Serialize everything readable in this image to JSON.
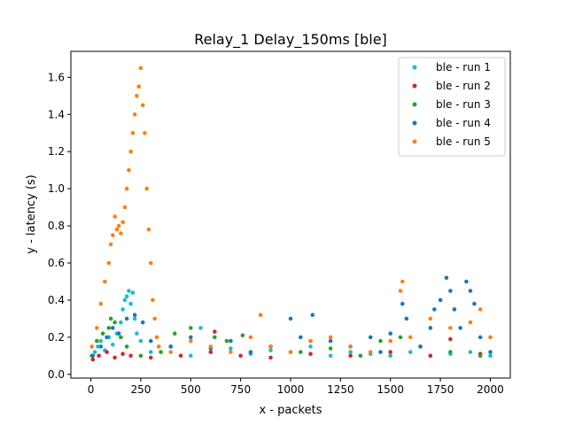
{
  "chart_data": {
    "type": "scatter",
    "title": "Relay_1 Delay_150ms [ble]",
    "xlabel": "x - packets",
    "ylabel": "y - latency (s)",
    "xlim": [
      -100,
      2100
    ],
    "ylim": [
      -0.02,
      1.74
    ],
    "xticks": [
      0,
      250,
      500,
      750,
      1000,
      1250,
      1500,
      1750,
      2000
    ],
    "yticks": [
      0.0,
      0.2,
      0.4,
      0.6,
      0.8,
      1.0,
      1.2,
      1.4,
      1.6
    ],
    "grid": false,
    "legend_position": "top-right",
    "series": [
      {
        "name": "ble - run 1",
        "color": "#17becf",
        "x": [
          5,
          20,
          35,
          50,
          70,
          90,
          110,
          130,
          150,
          160,
          170,
          180,
          190,
          200,
          210,
          220,
          230,
          250,
          300,
          400,
          500,
          550,
          600,
          700,
          800,
          900,
          1000,
          1100,
          1200,
          1300,
          1400,
          1500,
          1600,
          1700,
          1800,
          1900,
          2000
        ],
        "y": [
          0.1,
          0.12,
          0.15,
          0.18,
          0.13,
          0.2,
          0.16,
          0.22,
          0.28,
          0.35,
          0.4,
          0.42,
          0.45,
          0.38,
          0.44,
          0.3,
          0.22,
          0.18,
          0.12,
          0.15,
          0.1,
          0.25,
          0.12,
          0.14,
          0.11,
          0.13,
          0.12,
          0.15,
          0.1,
          0.12,
          0.11,
          0.1,
          0.12,
          0.1,
          0.11,
          0.12,
          0.1
        ]
      },
      {
        "name": "ble - run 2",
        "color": "#d62728",
        "x": [
          10,
          40,
          80,
          120,
          160,
          200,
          300,
          450,
          600,
          620,
          750,
          900,
          1100,
          1300,
          1500,
          1700,
          1800,
          1950
        ],
        "y": [
          0.08,
          0.1,
          0.12,
          0.09,
          0.11,
          0.1,
          0.09,
          0.1,
          0.12,
          0.23,
          0.1,
          0.09,
          0.11,
          0.1,
          0.12,
          0.1,
          0.19,
          0.11
        ]
      },
      {
        "name": "ble - run 3",
        "color": "#2ca02c",
        "x": [
          5,
          30,
          60,
          90,
          100,
          120,
          150,
          180,
          250,
          350,
          420,
          500,
          620,
          680,
          760,
          900,
          1050,
          1200,
          1350,
          1450,
          1550,
          1650,
          1800,
          1950
        ],
        "y": [
          0.1,
          0.18,
          0.22,
          0.25,
          0.3,
          0.28,
          0.2,
          0.15,
          0.1,
          0.12,
          0.22,
          0.25,
          0.2,
          0.18,
          0.21,
          0.15,
          0.12,
          0.14,
          0.1,
          0.18,
          0.2,
          0.15,
          0.12,
          0.1
        ]
      },
      {
        "name": "ble - run 4",
        "color": "#1f77b4",
        "x": [
          10,
          50,
          80,
          110,
          140,
          180,
          220,
          260,
          300,
          400,
          500,
          600,
          700,
          800,
          900,
          1000,
          1050,
          1110,
          1200,
          1300,
          1400,
          1450,
          1500,
          1560,
          1580,
          1650,
          1700,
          1720,
          1750,
          1780,
          1800,
          1820,
          1850,
          1880,
          1900,
          1920,
          1950,
          2000
        ],
        "y": [
          0.1,
          0.15,
          0.2,
          0.25,
          0.22,
          0.3,
          0.32,
          0.28,
          0.18,
          0.15,
          0.2,
          0.14,
          0.18,
          0.12,
          0.15,
          0.3,
          0.2,
          0.32,
          0.18,
          0.15,
          0.2,
          0.12,
          0.22,
          0.38,
          0.3,
          0.15,
          0.25,
          0.35,
          0.4,
          0.52,
          0.45,
          0.35,
          0.25,
          0.5,
          0.45,
          0.38,
          0.2,
          0.12
        ]
      },
      {
        "name": "ble - run 5",
        "color": "#ff7f0e",
        "x": [
          5,
          30,
          50,
          70,
          90,
          100,
          110,
          120,
          130,
          140,
          150,
          160,
          170,
          180,
          190,
          200,
          210,
          220,
          230,
          240,
          250,
          260,
          270,
          280,
          290,
          300,
          310,
          320,
          330,
          340,
          400,
          500,
          600,
          700,
          800,
          850,
          900,
          1000,
          1100,
          1200,
          1300,
          1400,
          1500,
          1550,
          1560,
          1600,
          1700,
          1800,
          1900,
          1950,
          2000
        ],
        "y": [
          0.15,
          0.25,
          0.38,
          0.5,
          0.6,
          0.7,
          0.75,
          0.85,
          0.78,
          0.8,
          0.76,
          0.82,
          0.9,
          1.0,
          1.1,
          1.2,
          1.3,
          1.4,
          1.5,
          1.55,
          1.65,
          1.45,
          1.3,
          1.0,
          0.78,
          0.6,
          0.4,
          0.3,
          0.2,
          0.15,
          0.12,
          0.18,
          0.15,
          0.12,
          0.2,
          0.32,
          0.15,
          0.12,
          0.18,
          0.2,
          0.15,
          0.12,
          0.18,
          0.45,
          0.5,
          0.2,
          0.3,
          0.25,
          0.28,
          0.35,
          0.2
        ]
      }
    ]
  }
}
